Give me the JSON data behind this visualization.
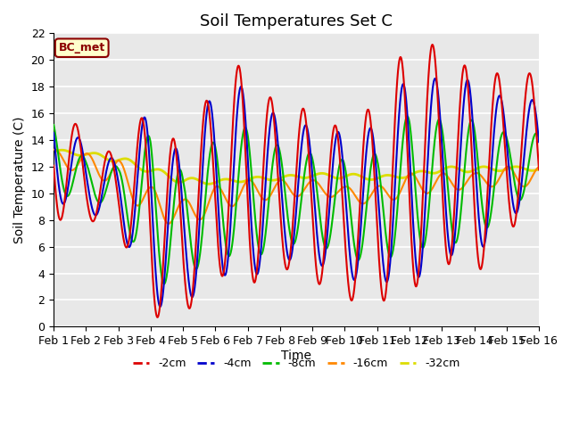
{
  "title": "Soil Temperatures Set C",
  "xlabel": "Time",
  "ylabel": "Soil Temperature (C)",
  "annotation": "BC_met",
  "ylim": [
    0,
    22
  ],
  "xlim": [
    0,
    360
  ],
  "x_ticks": [
    0,
    24,
    48,
    72,
    96,
    120,
    144,
    168,
    192,
    216,
    240,
    264,
    288,
    312,
    336,
    360
  ],
  "x_tick_labels": [
    "Feb 1",
    "Feb 2",
    "Feb 3",
    "Feb 4",
    "Feb 5",
    "Feb 6",
    "Feb 7",
    "Feb 8",
    "Feb 9",
    "Feb 10",
    "Feb 11",
    "Feb 12",
    "Feb 13",
    "Feb 14",
    "Feb 15",
    "Feb 16"
  ],
  "series": {
    "-2cm": {
      "color": "#dd0000",
      "lw": 1.5
    },
    "-4cm": {
      "color": "#0000cc",
      "lw": 1.5
    },
    "-8cm": {
      "color": "#00bb00",
      "lw": 1.5
    },
    "-16cm": {
      "color": "#ff8800",
      "lw": 1.5
    },
    "-32cm": {
      "color": "#dddd00",
      "lw": 2.0
    }
  },
  "bg_color": "#e8e8e8",
  "title_fontsize": 13,
  "label_fontsize": 10,
  "tick_fontsize": 9,
  "yticks": [
    0,
    2,
    4,
    6,
    8,
    10,
    12,
    14,
    16,
    18,
    20,
    22
  ]
}
